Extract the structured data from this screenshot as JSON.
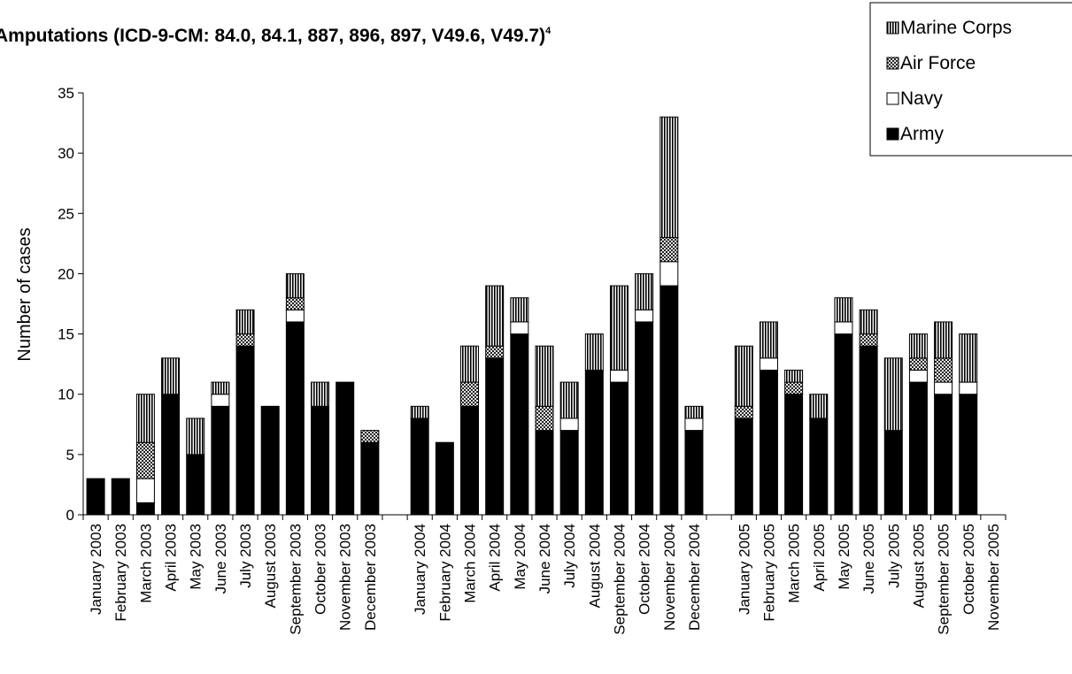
{
  "chart_data": {
    "type": "bar",
    "stacked": true,
    "title": "Amputations (ICD-9-CM: 84.0, 84.1, 887, 896, 897, V49.6, V49.7)",
    "title_superscript": "4",
    "xlabel": "",
    "ylabel": "Number of cases",
    "ylim": [
      0,
      35
    ],
    "yticks": [
      0,
      5,
      10,
      15,
      20,
      25,
      30,
      35
    ],
    "grid": false,
    "legend_position": "top-right",
    "categories": [
      "January 2003",
      "February 2003",
      "March 2003",
      "April 2003",
      "May 2003",
      "June 2003",
      "July 2003",
      "August 2003",
      "September 2003",
      "October 2003",
      "November 2003",
      "December 2003",
      "",
      "January 2004",
      "February 2004",
      "March 2004",
      "April 2004",
      "May 2004",
      "June 2004",
      "July 2004",
      "August 2004",
      "September 2004",
      "October 2004",
      "November 2004",
      "December 2004",
      "",
      "January 2005",
      "February 2005",
      "March 2005",
      "April 2005",
      "May 2005",
      "June 2005",
      "July 2005",
      "August 2005",
      "September 2005",
      "October 2005",
      "November 2005"
    ],
    "series": [
      {
        "name": "Army",
        "color": "#000000",
        "values": [
          3,
          3,
          1,
          10,
          5,
          9,
          14,
          9,
          16,
          9,
          11,
          6,
          null,
          8,
          6,
          9,
          13,
          15,
          7,
          7,
          12,
          11,
          16,
          19,
          7,
          null,
          8,
          12,
          10,
          8,
          15,
          14,
          7,
          11,
          10,
          10,
          0
        ]
      },
      {
        "name": "Navy",
        "color": "#ffffff",
        "values": [
          0,
          0,
          2,
          0,
          0,
          1,
          0,
          0,
          1,
          0,
          0,
          0,
          null,
          0,
          0,
          0,
          0,
          1,
          0,
          1,
          0,
          1,
          1,
          2,
          1,
          null,
          0,
          1,
          0,
          0,
          1,
          0,
          0,
          1,
          1,
          1,
          0
        ]
      },
      {
        "name": "Air Force",
        "color": "#999999",
        "values": [
          0,
          0,
          3,
          0,
          0,
          0,
          1,
          0,
          1,
          0,
          0,
          1,
          null,
          0,
          0,
          2,
          1,
          0,
          2,
          0,
          0,
          0,
          0,
          2,
          0,
          null,
          1,
          0,
          1,
          0,
          0,
          1,
          0,
          1,
          2,
          0,
          0
        ]
      },
      {
        "name": "Marine Corps",
        "color": "#cccccc",
        "values": [
          0,
          0,
          4,
          3,
          3,
          1,
          2,
          0,
          2,
          2,
          0,
          0,
          null,
          1,
          0,
          3,
          5,
          2,
          5,
          3,
          3,
          7,
          3,
          10,
          1,
          null,
          5,
          3,
          1,
          2,
          2,
          2,
          6,
          2,
          3,
          4,
          0
        ]
      }
    ]
  }
}
